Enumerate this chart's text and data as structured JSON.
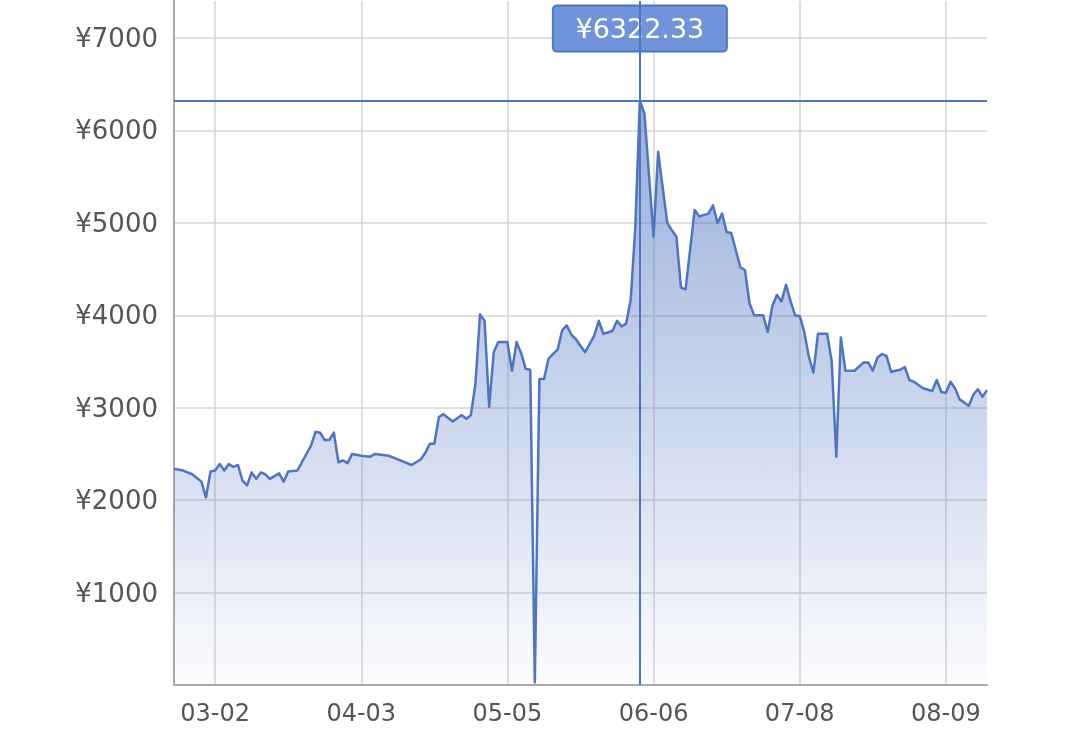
{
  "chart_data": {
    "type": "area",
    "x": [
      "--02-21",
      "--02-23",
      "--02-25",
      "--02-27",
      "--02-28",
      "--03-01",
      "--03-02",
      "--03-03",
      "--03-04",
      "--03-05",
      "--03-06",
      "--03-07",
      "--03-08",
      "--03-09",
      "--03-10",
      "--03-11",
      "--03-12",
      "--03-13",
      "--03-14",
      "--03-16",
      "--03-17",
      "--03-18",
      "--03-20",
      "--03-21",
      "--03-23",
      "--03-24",
      "--03-25",
      "--03-26",
      "--03-27",
      "--03-28",
      "--03-29",
      "--03-30",
      "--03-31",
      "--04-01",
      "--04-03",
      "--04-05",
      "--04-06",
      "--04-09",
      "--04-11",
      "--04-14",
      "--04-16",
      "--04-17",
      "--04-18",
      "--04-19",
      "--04-20",
      "--04-21",
      "--04-23",
      "--04-25",
      "--04-26",
      "--04-27",
      "--04-28",
      "--04-29",
      "--04-30",
      "--05-01",
      "--05-02",
      "--05-03",
      "--05-05",
      "--05-06",
      "--05-07",
      "--05-08",
      "--05-09",
      "--05-10",
      "--05-11",
      "--05-12",
      "--05-13",
      "--05-14",
      "--05-16",
      "--05-17",
      "--05-18",
      "--05-19",
      "--05-20",
      "--05-22",
      "--05-24",
      "--05-25",
      "--05-26",
      "--05-28",
      "--05-29",
      "--05-30",
      "--05-31",
      "--06-01",
      "--06-02",
      "--06-03",
      "--06-04",
      "--06-06",
      "--06-07",
      "--06-08",
      "--06-09",
      "--06-10",
      "--06-11",
      "--06-12",
      "--06-13",
      "--06-15",
      "--06-16",
      "--06-18",
      "--06-19",
      "--06-20",
      "--06-21",
      "--06-22",
      "--06-23",
      "--06-25",
      "--06-26",
      "--06-27",
      "--06-28",
      "--06-30",
      "--07-01",
      "--07-02",
      "--07-03",
      "--07-04",
      "--07-05",
      "--07-06",
      "--07-07",
      "--07-08",
      "--07-09",
      "--07-10",
      "--07-11",
      "--07-12",
      "--07-14",
      "--07-15",
      "--07-16",
      "--07-17",
      "--07-18",
      "--07-20",
      "--07-22",
      "--07-23",
      "--07-24",
      "--07-25",
      "--07-26",
      "--07-27",
      "--07-28",
      "--07-30",
      "--07-31",
      "--08-01",
      "--08-02",
      "--08-04",
      "--08-06",
      "--08-07",
      "--08-08",
      "--08-09",
      "--08-10",
      "--08-11",
      "--08-12",
      "--08-14",
      "--08-15",
      "--08-16",
      "--08-17",
      "--08-18"
    ],
    "series": [
      {
        "color": "#4f75c2",
        "values": [
          2340,
          2320,
          2280,
          2200,
          2030,
          2310,
          2320,
          2390,
          2320,
          2390,
          2360,
          2380,
          2210,
          2160,
          2300,
          2230,
          2300,
          2280,
          2230,
          2290,
          2200,
          2310,
          2320,
          2410,
          2590,
          2740,
          2730,
          2650,
          2650,
          2730,
          2410,
          2430,
          2400,
          2500,
          2480,
          2470,
          2500,
          2480,
          2440,
          2380,
          2440,
          2510,
          2610,
          2610,
          2900,
          2930,
          2850,
          2920,
          2880,
          2920,
          3260,
          4010,
          3940,
          3010,
          3600,
          3710,
          3710,
          3400,
          3710,
          3590,
          3420,
          3410,
          30,
          3310,
          3310,
          3530,
          3630,
          3840,
          3890,
          3790,
          3740,
          3600,
          3780,
          3940,
          3800,
          3830,
          3940,
          3880,
          3910,
          4170,
          4950,
          6322.33,
          6180,
          4850,
          5770,
          5380,
          5000,
          4920,
          4850,
          4300,
          4280,
          5140,
          5070,
          5100,
          5190,
          5000,
          5100,
          4900,
          4890,
          4520,
          4490,
          4130,
          4000,
          4000,
          3820,
          4100,
          4220,
          4150,
          4330,
          4150,
          4000,
          3990,
          3820,
          3550,
          3380,
          3800,
          3800,
          3500,
          2470,
          3760,
          3400,
          3400,
          3490,
          3490,
          3400,
          3540,
          3580,
          3560,
          3390,
          3410,
          3440,
          3300,
          3280,
          3210,
          3180,
          3300,
          3170,
          3160,
          3280,
          3210,
          3090,
          3020,
          3140,
          3200,
          3120,
          3190
        ]
      }
    ],
    "xlim": [
      "--02-21",
      "--08-18"
    ],
    "xticks": [
      {
        "value": "--03-02",
        "label": "03-02"
      },
      {
        "value": "--04-03",
        "label": "04-03"
      },
      {
        "value": "--05-05",
        "label": "05-05"
      },
      {
        "value": "--06-06",
        "label": "06-06"
      },
      {
        "value": "--07-08",
        "label": "07-08"
      },
      {
        "value": "--08-09",
        "label": "08-09"
      }
    ],
    "ylim": [
      0,
      7400
    ],
    "yticks": [
      {
        "value": 1000,
        "label": "¥1000"
      },
      {
        "value": 2000,
        "label": "¥2000"
      },
      {
        "value": 3000,
        "label": "¥3000"
      },
      {
        "value": 4000,
        "label": "¥4000"
      },
      {
        "value": 5000,
        "label": "¥5000"
      },
      {
        "value": 6000,
        "label": "¥6000"
      },
      {
        "value": 7000,
        "label": "¥7000"
      }
    ],
    "grid": true,
    "ref_lines": [
      {
        "axis": "y",
        "value": 6322.33,
        "color": "#4f75c2"
      },
      {
        "axis": "x",
        "value": "--06-03",
        "color": "#4f75c2"
      }
    ],
    "annotations": [
      {
        "text": "¥6322.33",
        "x": "--06-03",
        "y": 6322.33
      }
    ]
  }
}
